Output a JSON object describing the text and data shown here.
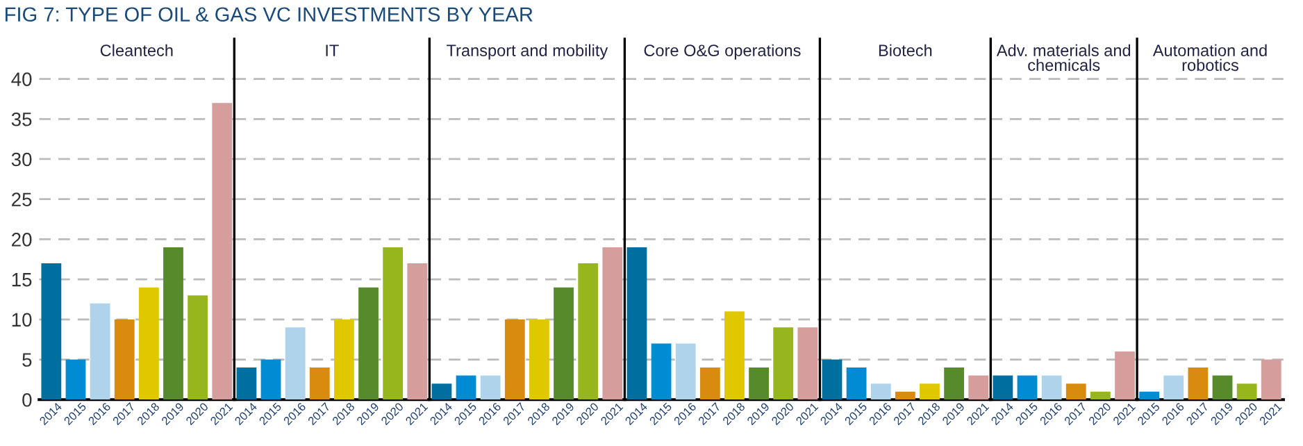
{
  "chart_data": [
    {
      "type": "bar",
      "title": "Cleantech",
      "annotations": [
        "FIG 7: TYPE OF OIL & GAS VC INVESTMENTS BY YEAR"
      ],
      "categories": [
        "2014",
        "2015",
        "2016",
        "2017",
        "2018",
        "2019",
        "2020",
        "2021"
      ],
      "values": [
        17,
        5,
        12,
        10,
        14,
        19,
        13,
        37
      ],
      "colors": [
        "#006e9e",
        "#008bd2",
        "#afd3ea",
        "#d98b10",
        "#e0c800",
        "#568a2a",
        "#97b61e",
        "#d59e9c"
      ],
      "ylim": [
        0,
        45
      ],
      "yticks": [
        0,
        5,
        10,
        15,
        20,
        25,
        30,
        35,
        40
      ],
      "grid": "y"
    },
    {
      "type": "bar",
      "title": "IT",
      "categories": [
        "2014",
        "2015",
        "2016",
        "2017",
        "2018",
        "2019",
        "2020",
        "2021"
      ],
      "values": [
        4,
        5,
        9,
        4,
        10,
        14,
        19,
        17
      ],
      "colors": [
        "#006e9e",
        "#008bd2",
        "#afd3ea",
        "#d98b10",
        "#e0c800",
        "#568a2a",
        "#97b61e",
        "#d59e9c"
      ],
      "ylim": [
        0,
        45
      ],
      "yticks": [
        0,
        5,
        10,
        15,
        20,
        25,
        30,
        35,
        40
      ],
      "grid": "y",
      "tick_labels": "x"
    },
    {
      "type": "bar",
      "title": "Transport and mobility",
      "categories": [
        "2014",
        "2015",
        "2016",
        "2017",
        "2018",
        "2019",
        "2020",
        "2021"
      ],
      "values": [
        2,
        3,
        3,
        10,
        10,
        14,
        17,
        19
      ],
      "colors": [
        "#006e9e",
        "#008bd2",
        "#afd3ea",
        "#d98b10",
        "#e0c800",
        "#568a2a",
        "#97b61e",
        "#d59e9c"
      ],
      "ylim": [
        0,
        45
      ],
      "yticks": [
        0,
        5,
        10,
        15,
        20,
        25,
        30,
        35,
        40
      ],
      "grid": "y",
      "tick_labels": "x"
    },
    {
      "type": "bar",
      "title": "Core O&G operations",
      "categories": [
        "2014",
        "2015",
        "2016",
        "2017",
        "2018",
        "2019",
        "2020",
        "2021"
      ],
      "values": [
        19,
        7,
        7,
        4,
        11,
        4,
        9,
        9
      ],
      "colors": [
        "#006e9e",
        "#008bd2",
        "#afd3ea",
        "#d98b10",
        "#e0c800",
        "#568a2a",
        "#97b61e",
        "#d59e9c"
      ],
      "ylim": [
        0,
        45
      ],
      "yticks": [
        0,
        5,
        10,
        15,
        20,
        25,
        30,
        35,
        40
      ],
      "grid": "y",
      "tick_labels": "x"
    },
    {
      "type": "bar",
      "title": "Biotech",
      "categories": [
        "2014",
        "2015",
        "2016",
        "2017",
        "2018",
        "2019",
        "2021"
      ],
      "values": [
        5,
        4,
        2,
        1,
        2,
        4,
        3
      ],
      "colors": [
        "#006e9e",
        "#008bd2",
        "#afd3ea",
        "#d98b10",
        "#e0c800",
        "#568a2a",
        "#d59e9c"
      ],
      "ylim": [
        0,
        45
      ],
      "yticks": [
        0,
        5,
        10,
        15,
        20,
        25,
        30,
        35,
        40
      ],
      "grid": "y",
      "tick_labels": "x"
    },
    {
      "type": "bar",
      "title": "Adv. materials and\nchemicals",
      "categories": [
        "2014",
        "2015",
        "2016",
        "2017",
        "2020",
        "2021"
      ],
      "values": [
        3,
        3,
        3,
        2,
        1,
        6
      ],
      "colors": [
        "#006e9e",
        "#008bd2",
        "#afd3ea",
        "#d98b10",
        "#97b61e",
        "#d59e9c"
      ],
      "ylim": [
        0,
        45
      ],
      "yticks": [
        0,
        5,
        10,
        15,
        20,
        25,
        30,
        35,
        40
      ],
      "grid": "y",
      "tick_labels": "x"
    },
    {
      "type": "bar",
      "title": "Automation and\nrobotics",
      "categories": [
        "2015",
        "2016",
        "2017",
        "2019",
        "2020",
        "2021"
      ],
      "values": [
        1,
        3,
        4,
        3,
        2,
        5
      ],
      "colors": [
        "#008bd2",
        "#afd3ea",
        "#d98b10",
        "#568a2a",
        "#97b61e",
        "#d59e9c"
      ],
      "ylim": [
        0,
        45
      ],
      "yticks": [
        0,
        5,
        10,
        15,
        20,
        25,
        30,
        35,
        40
      ],
      "grid": "y",
      "tick_labels": "x"
    }
  ]
}
